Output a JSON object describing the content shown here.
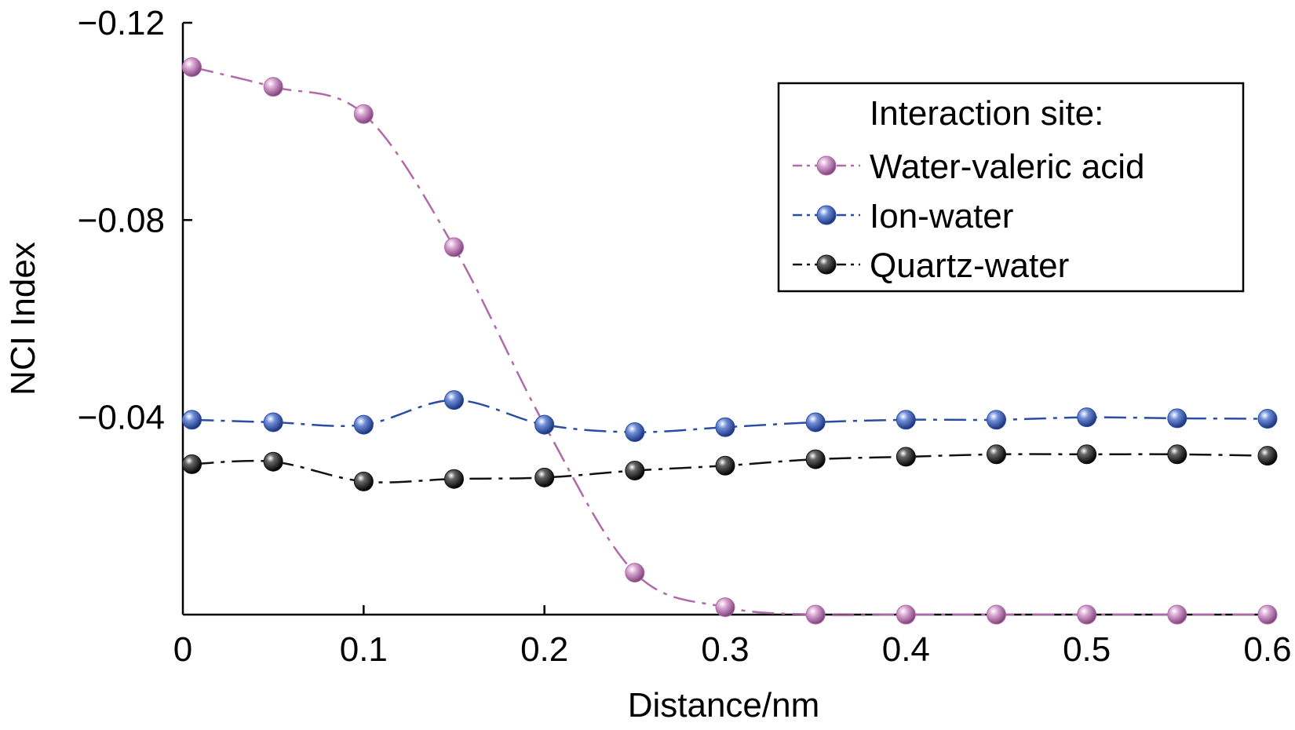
{
  "chart_data": {
    "type": "line",
    "xlabel": "Distance/nm",
    "ylabel": "NCI Index",
    "xlim": [
      0,
      0.6
    ],
    "ylim": [
      0,
      -0.12
    ],
    "y_axis_inverted": true,
    "x_ticks": [
      {
        "value": 0,
        "label": "0"
      },
      {
        "value": 0.1,
        "label": "0.1"
      },
      {
        "value": 0.2,
        "label": "0.2"
      },
      {
        "value": 0.3,
        "label": "0.3"
      },
      {
        "value": 0.4,
        "label": "0.4"
      },
      {
        "value": 0.5,
        "label": "0.5"
      },
      {
        "value": 0.6,
        "label": "0.6"
      }
    ],
    "y_ticks": [
      {
        "value": -0.12,
        "label": "−0.12"
      },
      {
        "value": -0.08,
        "label": "−0.08"
      },
      {
        "value": -0.04,
        "label": "−0.04"
      }
    ],
    "grid": false,
    "legend": {
      "title": "Interaction site:",
      "placement": "top-right"
    },
    "x": [
      0.005,
      0.05,
      0.1,
      0.15,
      0.2,
      0.25,
      0.3,
      0.35,
      0.4,
      0.45,
      0.5,
      0.55,
      0.6
    ],
    "series": [
      {
        "name": "Water-valeric acid",
        "color": "#b06aa8",
        "line_style": "dash-dot",
        "values": [
          -0.111,
          -0.107,
          -0.1015,
          -0.0745,
          -0.0385,
          -0.0085,
          -0.0015,
          0.0,
          0.0,
          0.0,
          0.0,
          0.0,
          0.0
        ]
      },
      {
        "name": "Ion-water",
        "color": "#2a4da3",
        "line_style": "dash-dot",
        "values": [
          -0.0395,
          -0.039,
          -0.0385,
          -0.0435,
          -0.0385,
          -0.037,
          -0.038,
          -0.039,
          -0.0395,
          -0.0395,
          -0.04,
          -0.0398,
          -0.0397
        ]
      },
      {
        "name": "Quartz-water",
        "color": "#111111",
        "line_style": "dash-dot",
        "values": [
          -0.0305,
          -0.031,
          -0.027,
          -0.0275,
          -0.0278,
          -0.0292,
          -0.0302,
          -0.0315,
          -0.032,
          -0.0325,
          -0.0325,
          -0.0325,
          -0.0322
        ]
      }
    ]
  }
}
